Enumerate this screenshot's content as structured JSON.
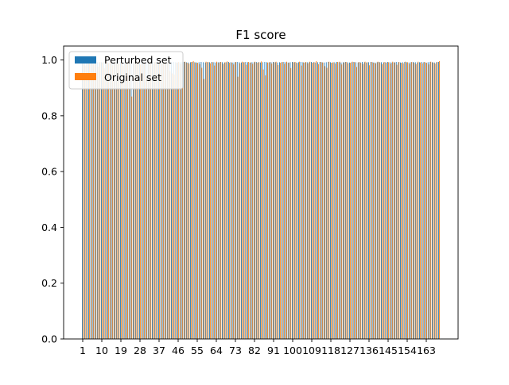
{
  "chart_data": {
    "type": "bar",
    "title": "F1 score",
    "xlabel": "",
    "ylabel": "",
    "ylim": [
      0,
      1.05
    ],
    "y_ticks": [
      "0.0",
      "0.2",
      "0.4",
      "0.6",
      "0.8",
      "1.0"
    ],
    "x_tick_labels": [
      "1",
      "10",
      "19",
      "28",
      "37",
      "46",
      "55",
      "64",
      "73",
      "82",
      "91",
      "100",
      "109",
      "118",
      "127",
      "136",
      "145",
      "154",
      "163"
    ],
    "x_start": 1,
    "x_end": 169,
    "grid": false,
    "legend_position": "upper-left",
    "series": [
      {
        "name": "Perturbed set",
        "color": "#1f77b4",
        "values": [
          0.992,
          0.991,
          0.992,
          0.991,
          0.992,
          0.991,
          0.993,
          0.992,
          0.991,
          0.992,
          0.992,
          0.993,
          0.992,
          0.991,
          0.992,
          0.991,
          0.992,
          0.992,
          0.993,
          0.992,
          0.991,
          0.992,
          0.992,
          0.993,
          0.991,
          0.992,
          0.992,
          0.991,
          0.992,
          0.991,
          0.992,
          0.993,
          0.992,
          0.991,
          0.992,
          0.992,
          0.991,
          0.992,
          0.993,
          0.992,
          0.991,
          0.992,
          0.992,
          0.993,
          0.992,
          0.991,
          0.992,
          0.992,
          0.993,
          0.992,
          0.991,
          0.992,
          0.993,
          0.992,
          0.991,
          0.992,
          0.993,
          0.992,
          0.991,
          0.992,
          0.992,
          0.993,
          0.992,
          0.991,
          0.992,
          0.993,
          0.992,
          0.991,
          0.992,
          0.993,
          0.992,
          0.991,
          0.992,
          0.993,
          0.992,
          0.991,
          0.992,
          0.993,
          0.992,
          0.991,
          0.992,
          0.992,
          0.993,
          0.992,
          0.991,
          0.992,
          0.993,
          0.992,
          0.991,
          0.992,
          0.993,
          0.992,
          0.991,
          0.992,
          0.992,
          0.993,
          0.992,
          0.991,
          0.992,
          0.993,
          0.992,
          0.991,
          0.992,
          0.993,
          0.992,
          0.991,
          0.992,
          0.992,
          0.993,
          0.992,
          0.991,
          0.992,
          0.993,
          0.992,
          0.991,
          0.992,
          0.993,
          0.992,
          0.991,
          0.992,
          0.993,
          0.992,
          0.991,
          0.992,
          0.993,
          0.992,
          0.991,
          0.992,
          0.993,
          0.992,
          0.991,
          0.992,
          0.993,
          0.992,
          0.991,
          0.992,
          0.993,
          0.992,
          0.991,
          0.992,
          0.993,
          0.992,
          0.991,
          0.992,
          0.993,
          0.992,
          0.991,
          0.992,
          0.993,
          0.992,
          0.991,
          0.992,
          0.993,
          0.992,
          0.991,
          0.992,
          0.993,
          0.992,
          0.991,
          0.992,
          0.993,
          0.992,
          0.991,
          0.992,
          0.993,
          0.992,
          0.991,
          0.992,
          0.993
        ]
      },
      {
        "name": "Original set",
        "color": "#ff7f0e",
        "values": [
          0.992,
          0.98,
          0.993,
          0.99,
          0.994,
          0.985,
          0.992,
          0.976,
          0.993,
          0.991,
          0.97,
          0.994,
          0.989,
          0.992,
          0.981,
          0.993,
          0.99,
          0.987,
          0.995,
          0.978,
          0.992,
          0.993,
          0.988,
          0.869,
          0.992,
          0.99,
          0.994,
          0.983,
          0.991,
          0.99,
          0.938,
          0.993,
          0.992,
          0.986,
          0.994,
          0.991,
          0.993,
          0.989,
          0.992,
          0.994,
          0.99,
          0.96,
          0.952,
          0.948,
          0.99,
          0.993,
          0.985,
          0.992,
          0.994,
          0.99,
          0.987,
          0.993,
          0.996,
          0.991,
          0.99,
          0.985,
          0.972,
          0.932,
          0.994,
          0.993,
          0.988,
          0.992,
          0.98,
          0.994,
          0.99,
          0.993,
          0.986,
          0.992,
          0.995,
          0.99,
          0.991,
          0.984,
          0.993,
          0.94,
          0.988,
          0.994,
          0.992,
          0.983,
          0.993,
          0.991,
          0.986,
          0.994,
          0.99,
          0.992,
          0.995,
          0.966,
          0.945,
          0.991,
          0.993,
          0.987,
          0.992,
          0.994,
          0.982,
          0.99,
          0.993,
          0.986,
          0.994,
          0.99,
          0.971,
          0.992,
          0.993,
          0.989,
          0.994,
          0.98,
          0.991,
          0.993,
          0.988,
          0.994,
          0.99,
          0.992,
          0.996,
          0.985,
          0.993,
          0.991,
          0.978,
          0.972,
          0.994,
          0.99,
          0.992,
          0.987,
          0.993,
          0.994,
          0.984,
          0.991,
          0.993,
          0.988,
          0.99,
          0.994,
          0.992,
          0.975,
          0.993,
          0.99,
          0.986,
          0.994,
          0.992,
          0.981,
          0.993,
          0.99,
          0.988,
          0.994,
          0.991,
          0.985,
          0.993,
          0.99,
          0.992,
          0.987,
          0.994,
          0.991,
          0.983,
          0.993,
          0.99,
          0.988,
          0.994,
          0.992,
          0.986,
          0.993,
          0.99,
          0.985,
          0.994,
          0.991,
          0.988,
          0.993,
          0.99,
          0.984,
          0.994,
          0.991,
          0.987,
          0.993,
          0.996
        ]
      }
    ]
  }
}
